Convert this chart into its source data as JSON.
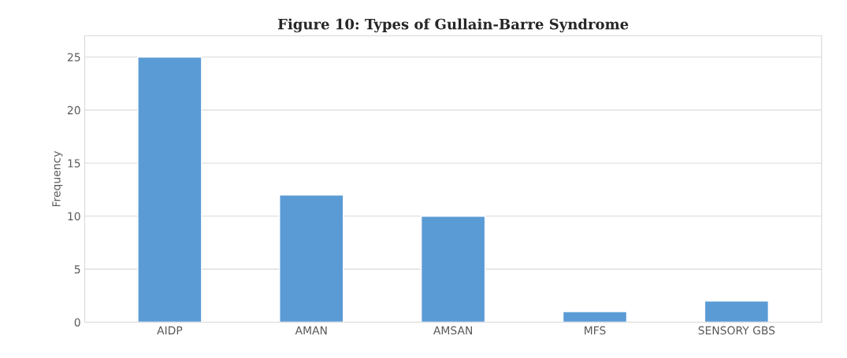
{
  "chart_data": {
    "type": "bar",
    "title": "Figure 10: Types of Gullain-Barre Syndrome",
    "ylabel": "Frequency",
    "categories": [
      "AIDP",
      "AMAN",
      "AMSAN",
      "MFS",
      "SENSORY GBS"
    ],
    "values": [
      25,
      12,
      10,
      1,
      2
    ],
    "color": "#5b9bd5",
    "ylim": [
      0,
      27
    ],
    "yticks": [
      0,
      5,
      10,
      15,
      20,
      25
    ],
    "grid": "y",
    "legend": false
  }
}
